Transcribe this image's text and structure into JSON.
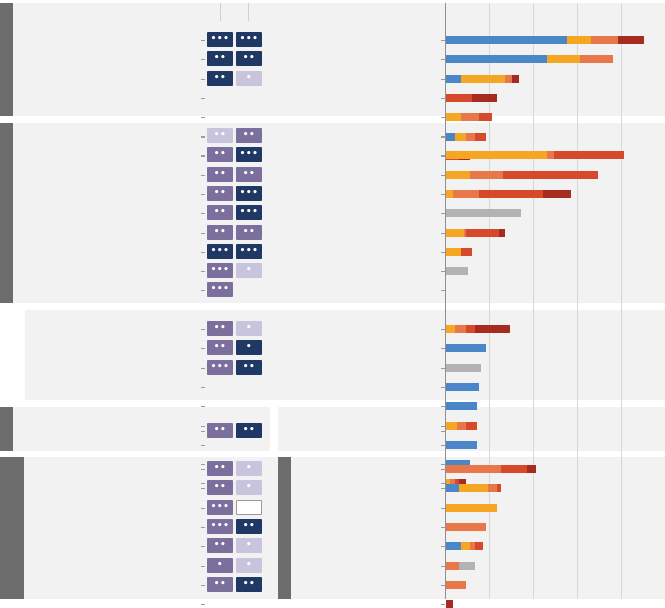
{
  "colors": {
    "panel_bg": "#f2f2f2",
    "side_bar": "#6d6d6d",
    "tag_dark": "#1f3864",
    "tag_mid": "#7b6f9e",
    "tag_light": "#c9c4dd",
    "tag_text": "#ffffff",
    "blue": "#4a86c8",
    "orange": "#f5a623",
    "coral": "#e8774a",
    "red": "#d64a2b",
    "darkred": "#a82b22",
    "gray": "#b3b3b3"
  },
  "chart_data": {
    "type": "bar",
    "orientation": "horizontal",
    "stacked": true,
    "title": "",
    "xlabel": "",
    "ylabel": "",
    "xlim": [
      0,
      100
    ],
    "grid": true,
    "legend": "none",
    "segment_colors": [
      "blue",
      "orange",
      "coral",
      "red",
      "darkred",
      "gray"
    ],
    "groups": [
      {
        "rows": [
          {
            "tags": [
              "•••",
              "•••"
            ],
            "tag_styles": [
              "dark",
              "dark"
            ],
            "segments": [
              55,
              11,
              12,
              0,
              12,
              0
            ]
          },
          {
            "tags": [
              "••",
              "••"
            ],
            "tag_styles": [
              "dark",
              "dark"
            ],
            "segments": [
              46,
              15,
              15,
              0,
              0,
              0
            ]
          },
          {
            "tags": [
              "••",
              "•"
            ],
            "tag_styles": [
              "dark",
              "light"
            ],
            "segments": [
              7,
              20,
              3,
              0,
              3,
              0
            ]
          },
          {
            "tags": [],
            "tag_styles": [],
            "segments": [
              0,
              0,
              0,
              12,
              11,
              0
            ]
          },
          {
            "tags": [],
            "tag_styles": [],
            "segments": [
              0,
              7,
              8,
              6,
              0,
              0
            ]
          },
          {
            "tags": [],
            "tag_styles": [],
            "segments": [
              4,
              5,
              4,
              5,
              0,
              0
            ]
          },
          {
            "tags": [],
            "tag_styles": [],
            "segments": [
              0,
              0,
              0,
              6,
              5,
              0
            ]
          }
        ]
      },
      {
        "rows": [
          {
            "tags": [
              "••",
              "••"
            ],
            "tag_styles": [
              "light",
              "mid"
            ],
            "segments": [
              0,
              0,
              0,
              0,
              0,
              0
            ]
          },
          {
            "tags": [
              "••",
              "•••"
            ],
            "tag_styles": [
              "mid",
              "dark"
            ],
            "segments": [
              0,
              46,
              3,
              32,
              0,
              0
            ]
          },
          {
            "tags": [
              "••",
              "••"
            ],
            "tag_styles": [
              "mid",
              "mid"
            ],
            "segments": [
              0,
              11,
              15,
              43,
              0,
              0
            ]
          },
          {
            "tags": [
              "••",
              "•••"
            ],
            "tag_styles": [
              "mid",
              "dark"
            ],
            "segments": [
              0,
              3,
              12,
              29,
              13,
              0
            ]
          },
          {
            "tags": [
              "••",
              "•••"
            ],
            "tag_styles": [
              "mid",
              "dark"
            ],
            "segments": [
              0,
              0,
              0,
              0,
              0,
              34
            ]
          },
          {
            "tags": [
              "••",
              "••"
            ],
            "tag_styles": [
              "mid",
              "mid"
            ],
            "segments": [
              0,
              8,
              1,
              15,
              3,
              0
            ]
          },
          {
            "tags": [
              "•••",
              "•••"
            ],
            "tag_styles": [
              "dark",
              "dark"
            ],
            "segments": [
              0,
              7,
              0,
              5,
              0,
              0
            ]
          },
          {
            "tags": [
              "•••",
              "•"
            ],
            "tag_styles": [
              "mid",
              "light"
            ],
            "segments": [
              0,
              0,
              0,
              0,
              0,
              10
            ]
          },
          {
            "tags": [
              "•••"
            ],
            "tag_styles": [
              "mid"
            ],
            "segments": [
              0,
              0,
              0,
              0,
              0,
              0
            ]
          }
        ]
      },
      {
        "rows": [
          {
            "tags": [
              "••",
              "•"
            ],
            "tag_styles": [
              "mid",
              "light"
            ],
            "segments": [
              0,
              4,
              5,
              4,
              16,
              0
            ]
          },
          {
            "tags": [
              "••",
              "•"
            ],
            "tag_styles": [
              "mid",
              "dark"
            ],
            "segments": [
              18,
              0,
              0,
              0,
              0,
              0
            ]
          },
          {
            "tags": [
              "•••",
              "••"
            ],
            "tag_styles": [
              "mid",
              "dark"
            ],
            "segments": [
              0,
              0,
              0,
              0,
              0,
              16
            ]
          },
          {
            "tags": [],
            "tag_styles": [],
            "segments": [
              15,
              0,
              0,
              0,
              0,
              0
            ]
          },
          {
            "tags": [],
            "tag_styles": [],
            "segments": [
              14,
              0,
              0,
              0,
              0,
              0
            ]
          },
          {
            "tags": [],
            "tag_styles": [],
            "segments": [
              0,
              5,
              4,
              5,
              0,
              0
            ]
          },
          {
            "tags": [],
            "tag_styles": [],
            "segments": [
              14,
              0,
              0,
              0,
              0,
              0
            ]
          },
          {
            "tags": [],
            "tag_styles": [],
            "segments": [
              11,
              0,
              0,
              0,
              0,
              0
            ]
          },
          {
            "tags": [],
            "tag_styles": [],
            "segments": [
              0,
              2,
              2,
              2,
              3,
              0
            ]
          }
        ]
      },
      {
        "rows": [
          {
            "tags": [
              "••",
              "••"
            ],
            "tag_styles": [
              "mid",
              "dark"
            ],
            "segments": [
              0,
              0,
              0,
              0,
              0,
              0
            ]
          }
        ]
      },
      {
        "rows": [
          {
            "tags": [
              "••",
              "•"
            ],
            "tag_styles": [
              "mid",
              "light"
            ],
            "segments": [
              0,
              0,
              25,
              12,
              4,
              0
            ]
          },
          {
            "tags": [
              "••",
              "•"
            ],
            "tag_styles": [
              "mid",
              "light"
            ],
            "segments": [
              6,
              13,
              4,
              2,
              0,
              0
            ]
          },
          {
            "tags": [
              "•••",
              ""
            ],
            "tag_styles": [
              "mid",
              "white"
            ],
            "segments": [
              0,
              23,
              0,
              0,
              0,
              0
            ]
          },
          {
            "tags": [
              "•••",
              "••"
            ],
            "tag_styles": [
              "mid",
              "dark"
            ],
            "segments": [
              0,
              0,
              18,
              0,
              0,
              0
            ]
          },
          {
            "tags": [
              "••",
              "•"
            ],
            "tag_styles": [
              "mid",
              "light"
            ],
            "segments": [
              7,
              4,
              2,
              4,
              0,
              0
            ]
          },
          {
            "tags": [
              "•",
              "•"
            ],
            "tag_styles": [
              "mid",
              "light"
            ],
            "segments": [
              0,
              0,
              6,
              0,
              0,
              7
            ]
          },
          {
            "tags": [
              "••",
              "••"
            ],
            "tag_styles": [
              "mid",
              "dark"
            ],
            "segments": [
              0,
              0,
              9,
              0,
              0,
              0
            ]
          },
          {
            "tags": [],
            "tag_styles": [],
            "segments": [
              0,
              0,
              0,
              0,
              3,
              0
            ]
          }
        ]
      }
    ]
  }
}
